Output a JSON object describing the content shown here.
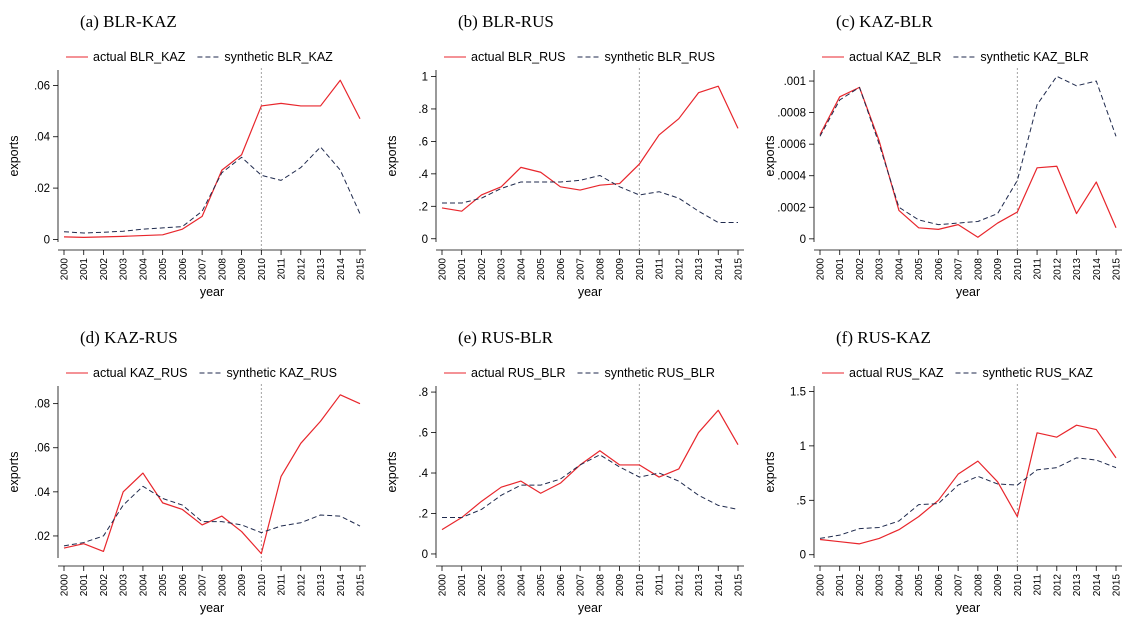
{
  "colors": {
    "actual": "#e8262c",
    "synthetic": "#1f2a4d",
    "vline": "#999999",
    "axis": "#000000"
  },
  "chart_data": [
    {
      "type": "line",
      "title": "(a) BLR-KAZ",
      "xlabel": "year",
      "ylabel": "exports",
      "x": [
        2000,
        2001,
        2002,
        2003,
        2004,
        2005,
        2006,
        2007,
        2008,
        2009,
        2010,
        2011,
        2012,
        2013,
        2014,
        2015
      ],
      "x_tick_labels": [
        "2000",
        "2001",
        "2002",
        "2003",
        "2004",
        "2005",
        "2006",
        "2007",
        "2008",
        "2009",
        "2010",
        "2011",
        "2012",
        "2013",
        "2014",
        "2015"
      ],
      "ylim": [
        -0.001,
        0.066
      ],
      "y_ticks": [
        0,
        0.02,
        0.04,
        0.06
      ],
      "y_tick_labels": [
        "0",
        ".02",
        ".04",
        ".06"
      ],
      "vline": 2010,
      "legend": "top",
      "grid": false,
      "series": [
        {
          "name": "actual BLR_KAZ",
          "style": "solid",
          "values": [
            0.001,
            0.0008,
            0.001,
            0.0012,
            0.0015,
            0.0018,
            0.004,
            0.009,
            0.027,
            0.033,
            0.052,
            0.053,
            0.052,
            0.052,
            0.062,
            0.047
          ]
        },
        {
          "name": "synthetic BLR_KAZ",
          "style": "dashed",
          "values": [
            0.003,
            0.0025,
            0.0028,
            0.0032,
            0.004,
            0.0045,
            0.005,
            0.011,
            0.026,
            0.032,
            0.025,
            0.023,
            0.028,
            0.036,
            0.027,
            0.01
          ]
        }
      ]
    },
    {
      "type": "line",
      "title": "(b) BLR-RUS",
      "xlabel": "year",
      "ylabel": "exports",
      "x": [
        2000,
        2001,
        2002,
        2003,
        2004,
        2005,
        2006,
        2007,
        2008,
        2009,
        2010,
        2011,
        2012,
        2013,
        2014,
        2015
      ],
      "x_tick_labels": [
        "2000",
        "2001",
        "2002",
        "2003",
        "2004",
        "2005",
        "2006",
        "2007",
        "2008",
        "2009",
        "2010",
        "2011",
        "2012",
        "2013",
        "2014",
        "2015"
      ],
      "ylim": [
        -0.02,
        1.04
      ],
      "y_ticks": [
        0,
        0.2,
        0.4,
        0.6,
        0.8,
        1
      ],
      "y_tick_labels": [
        "0",
        ".2",
        ".4",
        ".6",
        ".8",
        "1"
      ],
      "vline": 2010,
      "legend": "top",
      "grid": false,
      "series": [
        {
          "name": "actual BLR_RUS",
          "style": "solid",
          "values": [
            0.19,
            0.17,
            0.27,
            0.32,
            0.44,
            0.41,
            0.32,
            0.3,
            0.33,
            0.34,
            0.46,
            0.64,
            0.74,
            0.9,
            0.94,
            0.68
          ]
        },
        {
          "name": "synthetic BLR_RUS",
          "style": "dashed",
          "values": [
            0.22,
            0.22,
            0.25,
            0.31,
            0.35,
            0.35,
            0.35,
            0.36,
            0.39,
            0.32,
            0.27,
            0.29,
            0.25,
            0.17,
            0.1,
            0.1
          ]
        }
      ]
    },
    {
      "type": "line",
      "title": "(c) KAZ-BLR",
      "xlabel": "year",
      "ylabel": "exports",
      "x": [
        2000,
        2001,
        2002,
        2003,
        2004,
        2005,
        2006,
        2007,
        2008,
        2009,
        2010,
        2011,
        2012,
        2013,
        2014,
        2015
      ],
      "x_tick_labels": [
        "2000",
        "2001",
        "2002",
        "2003",
        "2004",
        "2005",
        "2006",
        "2007",
        "2008",
        "2009",
        "2010",
        "2011",
        "2012",
        "2013",
        "2014",
        "2015"
      ],
      "ylim": [
        -2e-05,
        0.00107
      ],
      "y_ticks": [
        0,
        0.0002,
        0.0004,
        0.0006,
        0.0008,
        0.001
      ],
      "y_tick_labels": [
        "0",
        ".0002",
        ".0004",
        ".0006",
        ".0008",
        ".001"
      ],
      "vline": 2010,
      "legend": "top",
      "grid": false,
      "series": [
        {
          "name": "actual KAZ_BLR",
          "style": "solid",
          "values": [
            0.00066,
            0.0009,
            0.00096,
            0.00062,
            0.00018,
            7e-05,
            6e-05,
            9e-05,
            1e-05,
            0.0001,
            0.00017,
            0.00045,
            0.00046,
            0.00016,
            0.00036,
            7e-05
          ]
        },
        {
          "name": "synthetic KAZ_BLR",
          "style": "dashed",
          "values": [
            0.00065,
            0.00088,
            0.00096,
            0.0006,
            0.0002,
            0.00012,
            9e-05,
            0.0001,
            0.00011,
            0.00016,
            0.00037,
            0.00085,
            0.00103,
            0.00097,
            0.001,
            0.00065
          ]
        }
      ]
    },
    {
      "type": "line",
      "title": "(d) KAZ-RUS",
      "xlabel": "year",
      "ylabel": "exports",
      "x": [
        2000,
        2001,
        2002,
        2003,
        2004,
        2005,
        2006,
        2007,
        2008,
        2009,
        2010,
        2011,
        2012,
        2013,
        2014,
        2015
      ],
      "x_tick_labels": [
        "2000",
        "2001",
        "2002",
        "2003",
        "2004",
        "2005",
        "2006",
        "2007",
        "2008",
        "2009",
        "2010",
        "2011",
        "2012",
        "2013",
        "2014",
        "2015"
      ],
      "ylim": [
        0.01,
        0.088
      ],
      "y_ticks": [
        0.02,
        0.04,
        0.06,
        0.08
      ],
      "y_tick_labels": [
        ".02",
        ".04",
        ".06",
        ".08"
      ],
      "vline": 2010,
      "legend": "top",
      "grid": false,
      "series": [
        {
          "name": "actual KAZ_RUS",
          "style": "solid",
          "values": [
            0.0145,
            0.0165,
            0.013,
            0.04,
            0.0485,
            0.035,
            0.032,
            0.025,
            0.029,
            0.022,
            0.012,
            0.047,
            0.062,
            0.072,
            0.084,
            0.08
          ]
        },
        {
          "name": "synthetic KAZ_RUS",
          "style": "dashed",
          "values": [
            0.0155,
            0.017,
            0.02,
            0.034,
            0.0425,
            0.037,
            0.034,
            0.0265,
            0.0265,
            0.025,
            0.0215,
            0.0245,
            0.026,
            0.0295,
            0.029,
            0.0245
          ]
        }
      ]
    },
    {
      "type": "line",
      "title": "(e) RUS-BLR",
      "xlabel": "year",
      "ylabel": "exports",
      "x": [
        2000,
        2001,
        2002,
        2003,
        2004,
        2005,
        2006,
        2007,
        2008,
        2009,
        2010,
        2011,
        2012,
        2013,
        2014,
        2015
      ],
      "x_tick_labels": [
        "2000",
        "2001",
        "2002",
        "2003",
        "2004",
        "2005",
        "2006",
        "2007",
        "2008",
        "2009",
        "2010",
        "2011",
        "2012",
        "2013",
        "2014",
        "2015"
      ],
      "ylim": [
        -0.02,
        0.83
      ],
      "y_ticks": [
        0,
        0.2,
        0.4,
        0.6,
        0.8
      ],
      "y_tick_labels": [
        "0",
        ".2",
        ".4",
        ".6",
        ".8"
      ],
      "vline": 2010,
      "legend": "top",
      "grid": false,
      "series": [
        {
          "name": "actual RUS_BLR",
          "style": "solid",
          "values": [
            0.12,
            0.18,
            0.26,
            0.33,
            0.36,
            0.3,
            0.35,
            0.44,
            0.51,
            0.44,
            0.44,
            0.38,
            0.42,
            0.6,
            0.71,
            0.54
          ]
        },
        {
          "name": "synthetic RUS_BLR",
          "style": "dashed",
          "values": [
            0.18,
            0.18,
            0.22,
            0.29,
            0.34,
            0.34,
            0.37,
            0.44,
            0.49,
            0.43,
            0.38,
            0.4,
            0.36,
            0.29,
            0.24,
            0.22
          ]
        }
      ]
    },
    {
      "type": "line",
      "title": "(f) RUS-KAZ",
      "xlabel": "year",
      "ylabel": "exports",
      "x": [
        2000,
        2001,
        2002,
        2003,
        2004,
        2005,
        2006,
        2007,
        2008,
        2009,
        2010,
        2011,
        2012,
        2013,
        2014,
        2015
      ],
      "x_tick_labels": [
        "2000",
        "2001",
        "2002",
        "2003",
        "2004",
        "2005",
        "2006",
        "2007",
        "2008",
        "2009",
        "2010",
        "2011",
        "2012",
        "2013",
        "2014",
        "2015"
      ],
      "ylim": [
        -0.03,
        1.55
      ],
      "y_ticks": [
        0,
        0.5,
        1,
        1.5
      ],
      "y_tick_labels": [
        "0",
        ".5",
        "1",
        "1.5"
      ],
      "vline": 2010,
      "legend": "top",
      "grid": false,
      "series": [
        {
          "name": "actual RUS_KAZ",
          "style": "solid",
          "values": [
            0.14,
            0.12,
            0.1,
            0.15,
            0.23,
            0.35,
            0.5,
            0.74,
            0.86,
            0.67,
            0.35,
            1.12,
            1.08,
            1.19,
            1.15,
            0.89
          ]
        },
        {
          "name": "synthetic RUS_KAZ",
          "style": "dashed",
          "values": [
            0.15,
            0.18,
            0.24,
            0.25,
            0.31,
            0.46,
            0.47,
            0.64,
            0.72,
            0.65,
            0.64,
            0.78,
            0.8,
            0.89,
            0.87,
            0.8
          ]
        }
      ]
    }
  ]
}
